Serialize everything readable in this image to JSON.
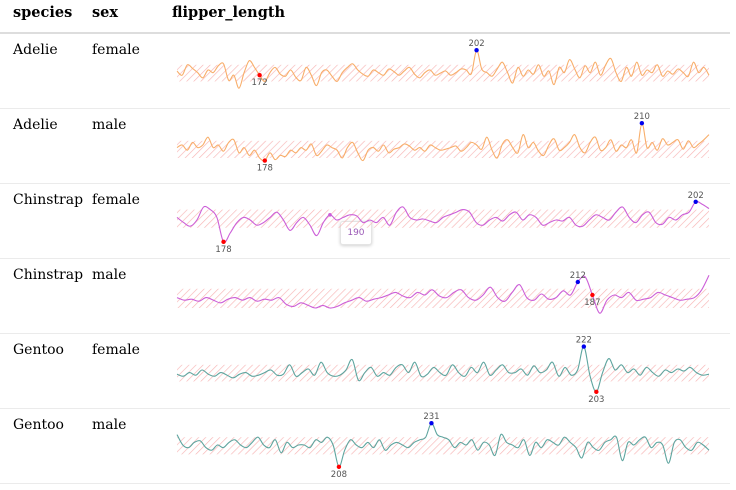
{
  "columns": {
    "species": "species",
    "sex": "sex",
    "metric": "flipper_length"
  },
  "colors": {
    "band": "#f7b5b5",
    "min_point": "#ff0000",
    "max_point": "#0000ee"
  },
  "rows": [
    {
      "species": "Adelie",
      "sex": "female",
      "color": "#f8ae6a",
      "line": [
        0.52,
        0.6,
        0.4,
        0.47,
        0.55,
        0.65,
        0.5,
        0.55,
        0.42,
        0.38,
        0.7,
        0.6,
        0.85,
        0.55,
        0.32,
        0.45,
        0.6,
        0.72,
        0.55,
        0.45,
        0.58,
        0.62,
        0.5,
        0.64,
        0.7,
        0.45,
        0.6,
        0.8,
        0.55,
        0.5,
        0.62,
        0.72,
        0.55,
        0.45,
        0.38,
        0.5,
        0.58,
        0.62,
        0.5,
        0.55,
        0.6,
        0.48,
        0.53,
        0.6,
        0.52,
        0.45,
        0.58,
        0.65,
        0.55,
        0.5,
        0.6,
        0.56,
        0.52,
        0.6,
        0.55,
        0.48,
        0.5,
        0.57,
        0.12,
        0.48,
        0.55,
        0.62,
        0.48,
        0.35,
        0.55,
        0.75,
        0.45,
        0.62,
        0.5,
        0.58,
        0.4,
        0.62,
        0.52,
        0.78,
        0.45,
        0.55,
        0.3,
        0.48,
        0.65,
        0.42,
        0.55,
        0.35,
        0.6,
        0.4,
        0.28,
        0.55,
        0.72,
        0.45,
        0.62,
        0.35,
        0.6,
        0.5,
        0.55,
        0.4,
        0.62,
        0.52,
        0.58,
        0.48,
        0.55,
        0.62,
        0.35,
        0.55,
        0.45,
        0.6
      ],
      "min": {
        "label": "172",
        "index": 16
      },
      "max": {
        "label": "202",
        "index": 58
      },
      "band": [
        0.4,
        0.72
      ]
    },
    {
      "species": "Adelie",
      "sex": "male",
      "color": "#f8ae6a",
      "line": [
        0.55,
        0.5,
        0.6,
        0.45,
        0.55,
        0.5,
        0.35,
        0.55,
        0.5,
        0.62,
        0.45,
        0.4,
        0.65,
        0.55,
        0.7,
        0.6,
        0.75,
        0.8,
        0.65,
        0.78,
        0.7,
        0.72,
        0.6,
        0.65,
        0.55,
        0.6,
        0.48,
        0.7,
        0.62,
        0.5,
        0.55,
        0.6,
        0.75,
        0.55,
        0.45,
        0.65,
        0.8,
        0.6,
        0.55,
        0.62,
        0.5,
        0.65,
        0.58,
        0.55,
        0.48,
        0.52,
        0.6,
        0.55,
        0.62,
        0.5,
        0.55,
        0.6,
        0.58,
        0.55,
        0.52,
        0.62,
        0.55,
        0.45,
        0.5,
        0.58,
        0.35,
        0.6,
        0.75,
        0.48,
        0.4,
        0.55,
        0.65,
        0.3,
        0.55,
        0.45,
        0.62,
        0.7,
        0.5,
        0.38,
        0.6,
        0.55,
        0.45,
        0.3,
        0.55,
        0.65,
        0.45,
        0.35,
        0.6,
        0.55,
        0.4,
        0.62,
        0.5,
        0.55,
        0.4,
        0.65,
        0.08,
        0.55,
        0.45,
        0.6,
        0.38,
        0.5,
        0.45,
        0.4,
        0.58,
        0.42,
        0.55,
        0.48,
        0.4,
        0.3
      ],
      "min": {
        "label": "178",
        "index": 17
      },
      "max": {
        "label": "210",
        "index": 90
      },
      "band": [
        0.42,
        0.75
      ]
    },
    {
      "species": "Chinstrap",
      "sex": "female",
      "color": "#cc5fd8",
      "line": [
        0.45,
        0.55,
        0.62,
        0.5,
        0.25,
        0.3,
        0.45,
        0.92,
        0.75,
        0.55,
        0.45,
        0.5,
        0.6,
        0.55,
        0.45,
        0.35,
        0.5,
        0.7,
        0.55,
        0.45,
        0.6,
        0.8,
        0.55,
        0.4,
        0.5,
        0.45,
        0.4,
        0.42,
        0.55,
        0.5,
        0.55,
        0.45,
        0.6,
        0.35,
        0.25,
        0.45,
        0.5,
        0.48,
        0.52,
        0.55,
        0.45,
        0.4,
        0.35,
        0.3,
        0.35,
        0.55,
        0.6,
        0.5,
        0.45,
        0.52,
        0.4,
        0.35,
        0.5,
        0.4,
        0.45,
        0.6,
        0.55,
        0.5,
        0.52,
        0.45,
        0.6,
        0.62,
        0.5,
        0.4,
        0.45,
        0.5,
        0.35,
        0.25,
        0.45,
        0.55,
        0.4,
        0.35,
        0.55,
        0.58,
        0.45,
        0.5,
        0.4,
        0.35,
        0.15,
        0.2,
        0.28
      ],
      "min": {
        "label": "178",
        "index": 7
      },
      "max": {
        "label": "202",
        "index": 78
      },
      "band": [
        0.3,
        0.65
      ],
      "hover": {
        "label": "190",
        "index": 23
      }
    },
    {
      "species": "Chinstrap",
      "sex": "male",
      "color": "#cc5fd8",
      "line": [
        0.55,
        0.6,
        0.58,
        0.62,
        0.55,
        0.6,
        0.65,
        0.58,
        0.55,
        0.6,
        0.55,
        0.62,
        0.58,
        0.6,
        0.55,
        0.68,
        0.72,
        0.65,
        0.7,
        0.75,
        0.7,
        0.75,
        0.72,
        0.65,
        0.6,
        0.55,
        0.62,
        0.58,
        0.55,
        0.5,
        0.45,
        0.52,
        0.55,
        0.45,
        0.5,
        0.4,
        0.52,
        0.55,
        0.45,
        0.4,
        0.55,
        0.6,
        0.5,
        0.35,
        0.55,
        0.62,
        0.45,
        0.3,
        0.55,
        0.6,
        0.48,
        0.58,
        0.55,
        0.42,
        0.5,
        0.25,
        0.15,
        0.5,
        0.85,
        0.6,
        0.5,
        0.55,
        0.45,
        0.6,
        0.58,
        0.55,
        0.45,
        0.5,
        0.55,
        0.6,
        0.58,
        0.55,
        0.4,
        0.12
      ],
      "min": {
        "label": "187",
        "index": 57
      },
      "max": {
        "label": "212",
        "index": 55
      },
      "band": [
        0.38,
        0.75
      ]
    },
    {
      "species": "Gentoo",
      "sex": "female",
      "color": "#5ea59f",
      "line": [
        0.58,
        0.62,
        0.55,
        0.6,
        0.5,
        0.58,
        0.62,
        0.55,
        0.6,
        0.65,
        0.58,
        0.55,
        0.62,
        0.6,
        0.55,
        0.5,
        0.6,
        0.58,
        0.4,
        0.62,
        0.55,
        0.48,
        0.6,
        0.35,
        0.55,
        0.62,
        0.6,
        0.5,
        0.3,
        0.7,
        0.55,
        0.45,
        0.62,
        0.55,
        0.6,
        0.45,
        0.4,
        0.55,
        0.35,
        0.62,
        0.58,
        0.45,
        0.55,
        0.6,
        0.4,
        0.55,
        0.62,
        0.45,
        0.55,
        0.35,
        0.6,
        0.5,
        0.4,
        0.55,
        0.55,
        0.48,
        0.6,
        0.42,
        0.55,
        0.5,
        0.35,
        0.62,
        0.45,
        0.6,
        0.5,
        0.05,
        0.62,
        0.92,
        0.55,
        0.28,
        0.5,
        0.4,
        0.55,
        0.48,
        0.6,
        0.45,
        0.55,
        0.62,
        0.5,
        0.55,
        0.48,
        0.52,
        0.45,
        0.55,
        0.6,
        0.58
      ],
      "min": {
        "label": "203",
        "index": 67
      },
      "max": {
        "label": "222",
        "index": 65
      },
      "band": [
        0.4,
        0.72
      ]
    },
    {
      "species": "Gentoo",
      "sex": "male",
      "color": "#5ea59f",
      "line": [
        0.3,
        0.5,
        0.55,
        0.45,
        0.42,
        0.55,
        0.6,
        0.5,
        0.55,
        0.45,
        0.4,
        0.5,
        0.55,
        0.45,
        0.35,
        0.5,
        0.55,
        0.4,
        0.65,
        0.45,
        0.55,
        0.5,
        0.5,
        0.55,
        0.4,
        0.45,
        0.35,
        0.5,
        0.92,
        0.6,
        0.4,
        0.5,
        0.55,
        0.45,
        0.55,
        0.4,
        0.6,
        0.5,
        0.45,
        0.5,
        0.55,
        0.45,
        0.4,
        0.35,
        0.08,
        0.3,
        0.35,
        0.4,
        0.55,
        0.45,
        0.5,
        0.4,
        0.6,
        0.45,
        0.5,
        0.7,
        0.3,
        0.45,
        0.5,
        0.55,
        0.4,
        0.7,
        0.45,
        0.55,
        0.4,
        0.45,
        0.5,
        0.35,
        0.45,
        0.55,
        0.75,
        0.45,
        0.55,
        0.6,
        0.45,
        0.4,
        0.35,
        0.8,
        0.45,
        0.5,
        0.4,
        0.35,
        0.55,
        0.45,
        0.5,
        0.85,
        0.45,
        0.4,
        0.55,
        0.6,
        0.45,
        0.5,
        0.6
      ],
      "min": {
        "label": "208",
        "index": 28
      },
      "max": {
        "label": "231",
        "index": 44
      },
      "band": [
        0.35,
        0.68
      ]
    }
  ]
}
